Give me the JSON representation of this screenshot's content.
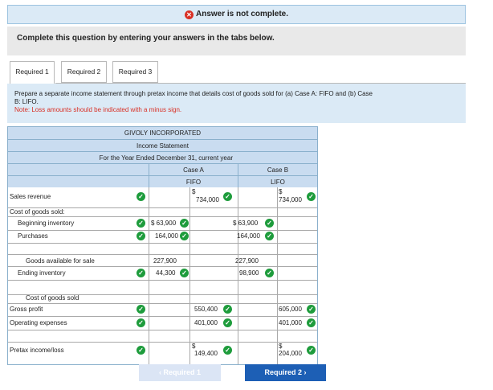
{
  "banner": {
    "icon": "x-icon",
    "text": "Answer is not complete."
  },
  "prompt": "Complete this question by entering your answers in the tabs below.",
  "tabs": [
    {
      "label": "Required 1",
      "active": true
    },
    {
      "label": "Required 2",
      "active": false
    },
    {
      "label": "Required 3",
      "active": false
    }
  ],
  "instructions": {
    "line1": "Prepare a separate income statement through pretax income that details cost of goods sold for (a) Case A: FIFO and (b) Case",
    "line2": "B: LIFO.",
    "note": "Note: Loss amounts should be indicated with a minus sign."
  },
  "statement": {
    "company": "GIVOLY INCORPORATED",
    "title": "Income Statement",
    "period": "For the Year Ended December 31, current year",
    "case_a": "Case A",
    "case_a_method": "FIFO",
    "case_b": "Case B",
    "case_b_method": "LIFO",
    "rows": {
      "sales": {
        "label": "Sales revenue",
        "a_prefix": "$",
        "a_value": "734,000",
        "b_prefix": "$",
        "b_value": "734,000"
      },
      "cogs_header": {
        "label": "Cost of goods sold:"
      },
      "beginning": {
        "label": "Beginning inventory",
        "a_value": "$ 63,900",
        "b_value": "$ 63,900"
      },
      "purchases": {
        "label": "Purchases",
        "a_value": "164,000",
        "b_value": "164,000"
      },
      "available": {
        "label": "Goods available for sale",
        "a_value": "227,900",
        "b_value": "227,900"
      },
      "ending": {
        "label": "Ending inventory",
        "a_value": "44,300",
        "b_value": "98,900"
      },
      "cogs": {
        "label": "Cost of goods sold"
      },
      "gross": {
        "label": "Gross profit",
        "a_value": "550,400",
        "b_value": "605,000"
      },
      "opex": {
        "label": "Operating expenses",
        "a_value": "401,000",
        "b_value": "401,000"
      },
      "pretax": {
        "label": "Pretax income/loss",
        "a_prefix": "$",
        "a_value": "149,400",
        "b_prefix": "$",
        "b_value": "204,000"
      }
    }
  },
  "nav": {
    "prev": "Required 1",
    "next": "Required 2",
    "prev_icon": "chevron-left-icon",
    "next_icon": "chevron-right-icon"
  },
  "colors": {
    "accent": "#1d5fb5",
    "check": "#1e9c3c",
    "error": "#d93025",
    "header_bg": "#c9dcf0"
  }
}
